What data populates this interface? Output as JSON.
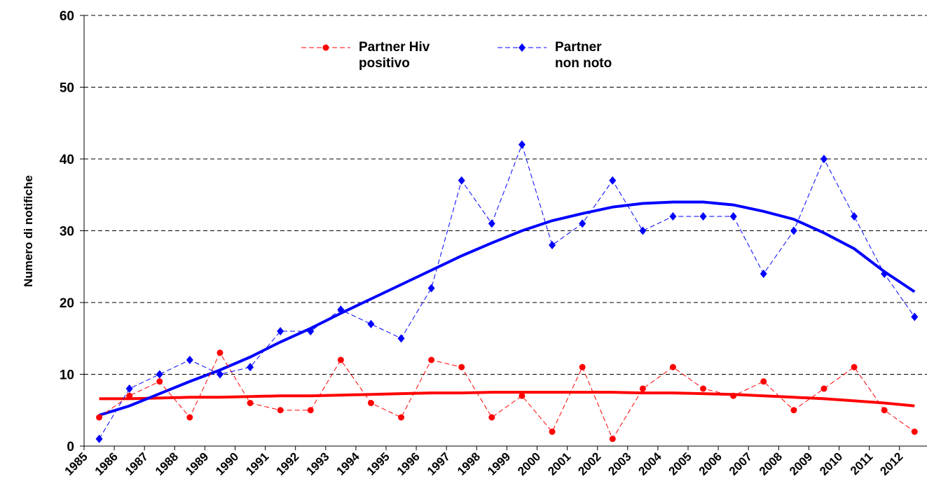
{
  "chart_data": {
    "type": "line",
    "y_label": "Numero di notifiche",
    "categories": [
      "1985",
      "1986",
      "1987",
      "1988",
      "1989",
      "1990",
      "1991",
      "1992",
      "1993",
      "1994",
      "1995",
      "1996",
      "1997",
      "1998",
      "1999",
      "2000",
      "2001",
      "2002",
      "2003",
      "2004",
      "2005",
      "2006",
      "2007",
      "2008",
      "2009",
      "2010",
      "2011",
      "2012"
    ],
    "series": [
      {
        "name": "Partner Hiv positivo",
        "color": "#ff0000",
        "marker": "circle",
        "values": [
          4,
          7,
          9,
          4,
          13,
          6,
          5,
          5,
          12,
          6,
          4,
          12,
          11,
          4,
          7,
          2,
          11,
          1,
          8,
          11,
          8,
          7,
          9,
          5,
          8,
          11,
          5,
          2
        ]
      },
      {
        "name": "Partner non noto",
        "color": "#0000ff",
        "marker": "diamond",
        "values": [
          1,
          8,
          10,
          12,
          10,
          11,
          16,
          16,
          19,
          17,
          15,
          22,
          37,
          31,
          42,
          28,
          31,
          37,
          30,
          32,
          32,
          32,
          24,
          30,
          40,
          32,
          24,
          18
        ]
      }
    ],
    "trendlines": [
      {
        "color": "#ff0000",
        "values": [
          6.6,
          6.6,
          6.7,
          6.8,
          6.8,
          6.9,
          7,
          7,
          7.1,
          7.2,
          7.3,
          7.4,
          7.4,
          7.5,
          7.5,
          7.5,
          7.5,
          7.5,
          7.4,
          7.4,
          7.3,
          7.2,
          7.0,
          6.8,
          6.6,
          6.3,
          6.0,
          5.6
        ]
      },
      {
        "color": "#0000ff",
        "values": [
          4.3,
          5.6,
          7.3,
          9,
          10.6,
          12.4,
          14.5,
          16.4,
          18.5,
          20.5,
          22.5,
          24.5,
          26.5,
          28.3,
          30,
          31.4,
          32.4,
          33.3,
          33.8,
          34,
          34,
          33.6,
          32.7,
          31.6,
          29.7,
          27.5,
          24.3,
          21.5
        ]
      }
    ],
    "ylim": [
      0,
      60
    ],
    "yticks": [
      0,
      10,
      20,
      30,
      40,
      50,
      60
    ],
    "grid": true
  }
}
